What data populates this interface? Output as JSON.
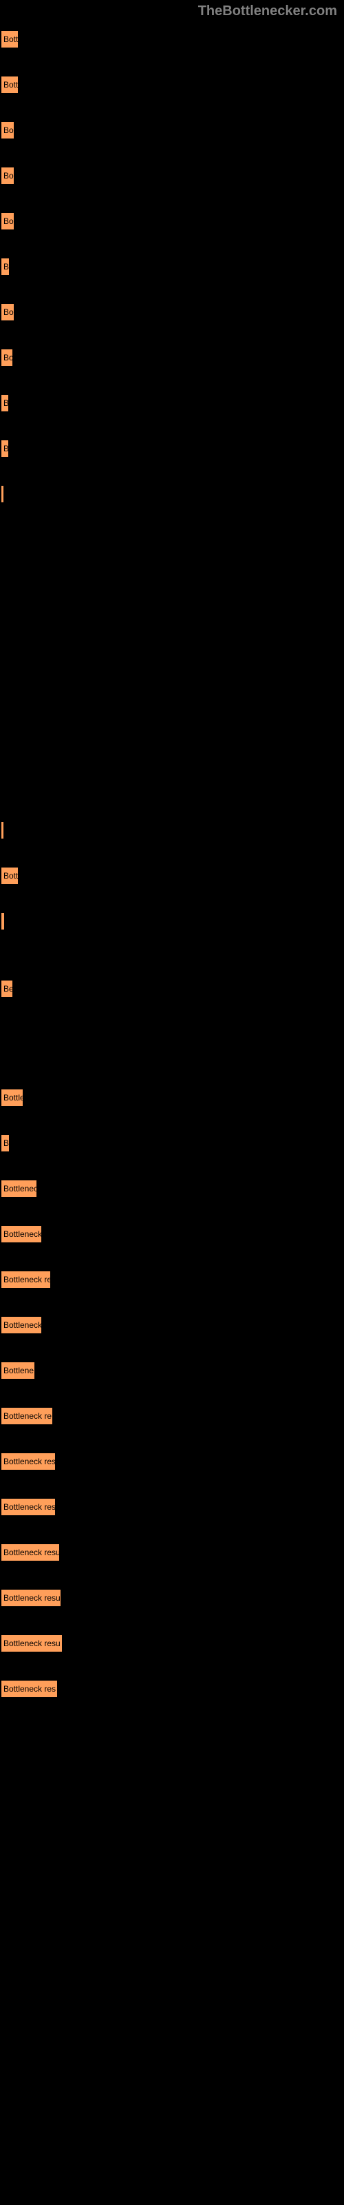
{
  "header": {
    "site_name": "TheBottlenecker.com"
  },
  "chart": {
    "type": "bar",
    "background_color": "#000000",
    "bar_color": "#ff9f5a",
    "bar_border_color": "#000000",
    "text_color": "#000000",
    "header_text_color": "#808080",
    "bars": [
      {
        "label": "Bott",
        "width": 28
      },
      {
        "label": "Bott",
        "width": 28
      },
      {
        "label": "Bo",
        "width": 22
      },
      {
        "label": "Bo",
        "width": 22
      },
      {
        "label": "Bo",
        "width": 22
      },
      {
        "label": "B",
        "width": 15
      },
      {
        "label": "Bo",
        "width": 22
      },
      {
        "label": "Bo",
        "width": 20
      },
      {
        "label": "B",
        "width": 14
      },
      {
        "label": "B",
        "width": 14
      },
      {
        "label": "",
        "width": 7
      },
      {
        "label": "",
        "width": 7
      },
      {
        "label": "Bott",
        "width": 28
      },
      {
        "label": "",
        "width": 8
      },
      {
        "label": "Be",
        "width": 20
      },
      {
        "label": "Bottle",
        "width": 35
      },
      {
        "label": "B",
        "width": 15
      },
      {
        "label": "Bottlenec",
        "width": 55
      },
      {
        "label": "Bottleneck",
        "width": 62
      },
      {
        "label": "Bottleneck re",
        "width": 75
      },
      {
        "label": "Bottleneck",
        "width": 62
      },
      {
        "label": "Bottlene",
        "width": 52
      },
      {
        "label": "Bottleneck re",
        "width": 78
      },
      {
        "label": "Bottleneck res",
        "width": 82
      },
      {
        "label": "Bottleneck res",
        "width": 82
      },
      {
        "label": "Bottleneck resu",
        "width": 88
      },
      {
        "label": "Bottleneck resu",
        "width": 90
      },
      {
        "label": "Bottleneck resu",
        "width": 92
      },
      {
        "label": "Bottleneck res",
        "width": 85
      }
    ]
  }
}
